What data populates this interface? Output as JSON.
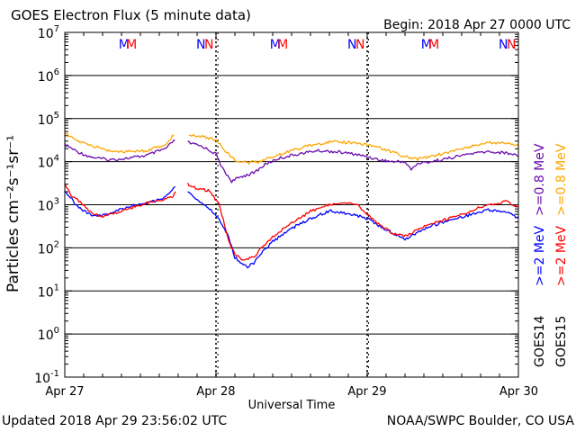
{
  "header": {
    "title": "GOES Electron Flux (5 minute data)",
    "begin": "Begin: 2018 Apr 27 0000 UTC"
  },
  "footer": {
    "updated": "Updated 2018 Apr 29 23:56:02 UTC",
    "credit": "NOAA/SWPC Boulder, CO USA"
  },
  "chart_data": {
    "type": "line",
    "title": "GOES Electron Flux (5 minute data)",
    "xlabel": "Universal Time",
    "ylabel": "Particles cm⁻²s⁻¹sr⁻¹",
    "y_scale": "log",
    "ylim": [
      0.1,
      10000000
    ],
    "xlim": [
      0,
      72
    ],
    "x_unit": "hours since 2018 Apr 27 0000 UTC",
    "grid": "horizontal",
    "x_ticks": [
      {
        "x": 0,
        "label": "Apr 27"
      },
      {
        "x": 24,
        "label": "Apr 28"
      },
      {
        "x": 48,
        "label": "Apr 29"
      },
      {
        "x": 72,
        "label": "Apr 30"
      }
    ],
    "y_ticks": [
      {
        "exp": -1,
        "label": "10",
        "sup": "-1"
      },
      {
        "exp": 0,
        "label": "10",
        "sup": "0"
      },
      {
        "exp": 1,
        "label": "10",
        "sup": "1"
      },
      {
        "exp": 2,
        "label": "10",
        "sup": "2"
      },
      {
        "exp": 3,
        "label": "10",
        "sup": "3"
      },
      {
        "exp": 4,
        "label": "10",
        "sup": "4"
      },
      {
        "exp": 5,
        "label": "10",
        "sup": "5"
      },
      {
        "exp": 6,
        "label": "10",
        "sup": "6"
      },
      {
        "exp": 7,
        "label": "10",
        "sup": "7"
      }
    ],
    "threshold": {
      "value": 1000,
      "style": "dashed"
    },
    "series": [
      {
        "name": "GOES14 >=0.8 MeV",
        "legend_satellite": "GOES14",
        "legend_energy": ">=0.8 MeV",
        "color": "#6a0dad",
        "points": [
          [
            0,
            25000
          ],
          [
            2,
            17000
          ],
          [
            4,
            13000
          ],
          [
            7,
            11000
          ],
          [
            10,
            12000
          ],
          [
            13,
            14000
          ],
          [
            16,
            20000
          ],
          [
            17.5,
            32000
          ],
          [
            17.7,
            null
          ],
          [
            19.3,
            null
          ],
          [
            19.5,
            28000
          ],
          [
            22,
            22000
          ],
          [
            24,
            15000
          ],
          [
            25,
            7000
          ],
          [
            26.5,
            3500
          ],
          [
            28,
            4500
          ],
          [
            30,
            5500
          ],
          [
            32,
            9000
          ],
          [
            34,
            12000
          ],
          [
            37,
            15000
          ],
          [
            40,
            18000
          ],
          [
            43,
            17000
          ],
          [
            46,
            15000
          ],
          [
            48,
            13000
          ],
          [
            50,
            11000
          ],
          [
            52,
            10000
          ],
          [
            54,
            10000
          ],
          [
            55,
            6500
          ],
          [
            56,
            9000
          ],
          [
            58,
            10000
          ],
          [
            61,
            12000
          ],
          [
            64,
            15000
          ],
          [
            67,
            17000
          ],
          [
            70,
            16000
          ],
          [
            72,
            14000
          ]
        ]
      },
      {
        "name": "GOES15 >=0.8 MeV",
        "legend_satellite": "GOES15",
        "legend_energy": ">=0.8 MeV",
        "color": "#ffa500",
        "points": [
          [
            0,
            45000
          ],
          [
            2,
            30000
          ],
          [
            4,
            24000
          ],
          [
            7,
            18000
          ],
          [
            10,
            17000
          ],
          [
            13,
            18000
          ],
          [
            16,
            25000
          ],
          [
            17.3,
            42000
          ],
          [
            17.5,
            null
          ],
          [
            19.5,
            null
          ],
          [
            19.7,
            42000
          ],
          [
            22,
            38000
          ],
          [
            24,
            32000
          ],
          [
            25.5,
            18000
          ],
          [
            27,
            11000
          ],
          [
            29,
            9500
          ],
          [
            31,
            10000
          ],
          [
            33,
            13000
          ],
          [
            36,
            18000
          ],
          [
            39,
            24000
          ],
          [
            42,
            29000
          ],
          [
            45,
            28000
          ],
          [
            48,
            25000
          ],
          [
            51,
            19000
          ],
          [
            54,
            13000
          ],
          [
            56,
            11500
          ],
          [
            59,
            14000
          ],
          [
            62,
            18000
          ],
          [
            65,
            24000
          ],
          [
            68,
            28000
          ],
          [
            70,
            27000
          ],
          [
            72,
            24000
          ]
        ]
      },
      {
        "name": "GOES14 >=2 MeV",
        "legend_satellite": "GOES14",
        "legend_energy": ">=2 MeV",
        "color": "#0000ff",
        "points": [
          [
            0,
            2200
          ],
          [
            2,
            900
          ],
          [
            4,
            600
          ],
          [
            6,
            550
          ],
          [
            8,
            700
          ],
          [
            10,
            900
          ],
          [
            13,
            1100
          ],
          [
            15,
            1300
          ],
          [
            16,
            1600
          ],
          [
            17.5,
            2500
          ],
          [
            17.7,
            null
          ],
          [
            19.3,
            null
          ],
          [
            19.5,
            2000
          ],
          [
            21,
            1300
          ],
          [
            23,
            800
          ],
          [
            24.5,
            450
          ],
          [
            26,
            180
          ],
          [
            27,
            60
          ],
          [
            29,
            35
          ],
          [
            30,
            45
          ],
          [
            31,
            70
          ],
          [
            33,
            140
          ],
          [
            36,
            280
          ],
          [
            39,
            480
          ],
          [
            42,
            720
          ],
          [
            45,
            620
          ],
          [
            48,
            480
          ],
          [
            50,
            320
          ],
          [
            52,
            220
          ],
          [
            54,
            160
          ],
          [
            56,
            230
          ],
          [
            58,
            320
          ],
          [
            61,
            430
          ],
          [
            64,
            560
          ],
          [
            67,
            750
          ],
          [
            70,
            700
          ],
          [
            72,
            500
          ]
        ]
      },
      {
        "name": "GOES15 >=2 MeV",
        "legend_satellite": "GOES15",
        "legend_energy": ">=2 MeV",
        "color": "#ff0000",
        "points": [
          [
            0,
            3000
          ],
          [
            1,
            1700
          ],
          [
            2,
            1300
          ],
          [
            4,
            700
          ],
          [
            6,
            520
          ],
          [
            8,
            650
          ],
          [
            10,
            800
          ],
          [
            13,
            1100
          ],
          [
            15,
            1300
          ],
          [
            17,
            1500
          ],
          [
            17.6,
            1900
          ],
          [
            17.7,
            null
          ],
          [
            19.3,
            null
          ],
          [
            19.5,
            3000
          ],
          [
            21,
            2400
          ],
          [
            23,
            2100
          ],
          [
            24.5,
            1000
          ],
          [
            26,
            150
          ],
          [
            27,
            70
          ],
          [
            28,
            55
          ],
          [
            30,
            60
          ],
          [
            31,
            90
          ],
          [
            33,
            180
          ],
          [
            36,
            380
          ],
          [
            39,
            700
          ],
          [
            42,
            1000
          ],
          [
            44,
            1150
          ],
          [
            46,
            1100
          ],
          [
            48,
            600
          ],
          [
            50,
            330
          ],
          [
            52,
            220
          ],
          [
            54,
            190
          ],
          [
            56,
            260
          ],
          [
            58,
            350
          ],
          [
            61,
            480
          ],
          [
            64,
            680
          ],
          [
            67,
            1000
          ],
          [
            70,
            1200
          ],
          [
            72,
            850
          ]
        ]
      }
    ],
    "annotations": [
      {
        "x": 9.4,
        "text": "M",
        "color": "#0000ff"
      },
      {
        "x": 10.6,
        "text": "M",
        "color": "#ff0000"
      },
      {
        "x": 21.6,
        "text": "N",
        "color": "#0000ff"
      },
      {
        "x": 22.9,
        "text": "N",
        "color": "#ff0000"
      },
      {
        "x": 33.4,
        "text": "M",
        "color": "#0000ff"
      },
      {
        "x": 34.6,
        "text": "M",
        "color": "#ff0000"
      },
      {
        "x": 45.6,
        "text": "N",
        "color": "#0000ff"
      },
      {
        "x": 46.9,
        "text": "N",
        "color": "#ff0000"
      },
      {
        "x": 57.4,
        "text": "M",
        "color": "#0000ff"
      },
      {
        "x": 58.6,
        "text": "M",
        "color": "#ff0000"
      },
      {
        "x": 69.6,
        "text": "N",
        "color": "#0000ff"
      },
      {
        "x": 70.9,
        "text": "N",
        "color": "#ff0000"
      }
    ],
    "eclipse_marks_x": [
      24.3,
      48.2
    ]
  }
}
